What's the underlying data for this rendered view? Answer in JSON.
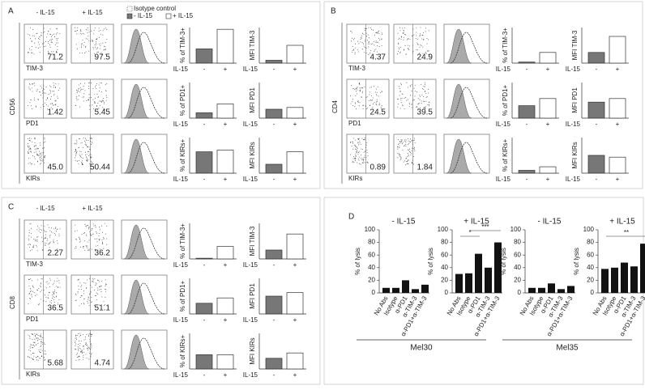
{
  "panels": [
    {
      "label": "A",
      "marker": "CD56",
      "conditions": [
        "- IL-15",
        "+ IL-15"
      ],
      "legend": [
        "Isotype control",
        "- IL-15",
        "+ IL-15"
      ],
      "x_label": "IL-15",
      "categories": [
        "-",
        "+"
      ],
      "rows": [
        {
          "marker": "TIM-3",
          "percentages": [
            "71.2",
            "97.5"
          ],
          "pct_label": "% of TIM-3+",
          "pct_values": [
            40,
            95
          ],
          "mfi_label": "MFI TIM-3",
          "mfi_values": [
            8,
            50
          ]
        },
        {
          "marker": "PD1",
          "percentages": [
            "1.42",
            "5.45"
          ],
          "pct_label": "% of PD1+",
          "pct_values": [
            15,
            40
          ],
          "mfi_label": "MFI PD1",
          "mfi_values": [
            25,
            30
          ]
        },
        {
          "marker": "KIRs",
          "percentages": [
            "45.0",
            "50.44"
          ],
          "pct_label": "% of KIRs+",
          "pct_values": [
            60,
            65
          ],
          "mfi_label": "MFI KIRs",
          "mfi_values": [
            25,
            60
          ]
        }
      ]
    },
    {
      "label": "B",
      "marker": "CD4",
      "x_label": "IL-15",
      "categories": [
        "-",
        "+"
      ],
      "rows": [
        {
          "marker": "TIM-3",
          "percentages": [
            "4.37",
            "24.9"
          ],
          "pct_label": "% of TIM-3+",
          "pct_values": [
            3,
            30
          ],
          "mfi_label": "MFI TIM-3",
          "mfi_values": [
            30,
            75
          ]
        },
        {
          "marker": "PD1",
          "percentages": [
            "24.5",
            "39.5"
          ],
          "pct_label": "% of PD1+",
          "pct_values": [
            35,
            55
          ],
          "mfi_label": "MFI PD1",
          "mfi_values": [
            45,
            55
          ]
        },
        {
          "marker": "KIRs",
          "percentages": [
            "0.89",
            "1.84"
          ],
          "pct_label": "% of KIRs+",
          "pct_values": [
            8,
            18
          ],
          "mfi_label": "MFI KIRs",
          "mfi_values": [
            50,
            45
          ]
        }
      ]
    },
    {
      "label": "C",
      "marker": "CD8",
      "conditions": [
        "- IL-15",
        "+ IL-15"
      ],
      "x_label": "IL-15",
      "categories": [
        "-",
        "+"
      ],
      "rows": [
        {
          "marker": "TIM-3",
          "percentages": [
            "2.27",
            "36.2"
          ],
          "pct_label": "% of TIM-3+",
          "pct_values": [
            2,
            35
          ],
          "mfi_label": "MFI TIM-3",
          "mfi_values": [
            25,
            70
          ]
        },
        {
          "marker": "PD1",
          "percentages": [
            "36.5",
            "51.1"
          ],
          "pct_label": "% of PD1+",
          "pct_values": [
            30,
            45
          ],
          "mfi_label": "MFI PD1",
          "mfi_values": [
            50,
            60
          ]
        },
        {
          "marker": "KIRs",
          "percentages": [
            "5.68",
            "4.74"
          ],
          "pct_label": "% of KIRs+",
          "pct_values": [
            40,
            40
          ],
          "mfi_label": "MFI KIRs",
          "mfi_values": [
            30,
            45
          ]
        }
      ]
    }
  ],
  "panel_d": {
    "label": "D",
    "ylabel": "% of lysis",
    "ylim": [
      0,
      100
    ],
    "yticks": [
      0,
      20,
      40,
      60,
      80,
      100
    ],
    "categories": [
      "No Abs",
      "Isotype",
      "α-PD1",
      "α-TIM-3",
      "α-PD1+α-TIM-3"
    ],
    "charts": [
      {
        "title": "- IL-15",
        "values": [
          8,
          8,
          20,
          6,
          13
        ],
        "stars": []
      },
      {
        "title": "+ IL-15",
        "values": [
          30,
          31,
          62,
          40,
          80
        ],
        "stars": [
          "*",
          "***"
        ]
      },
      {
        "title": "- IL-15",
        "values": [
          8,
          8,
          15,
          6,
          11
        ],
        "stars": []
      },
      {
        "title": "+ IL-15",
        "values": [
          38,
          40,
          48,
          42,
          78
        ],
        "stars": [
          "**"
        ]
      }
    ],
    "groups": [
      "Mel30",
      "Mel35"
    ]
  }
}
